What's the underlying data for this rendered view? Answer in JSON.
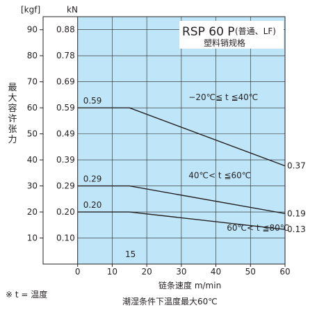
{
  "chart_data": {
    "type": "line",
    "unit_left": "[kgf]",
    "unit_right": "kN",
    "ylabel": "最大容许张力",
    "xlabel": "链条速度 m/min",
    "footnote_left": "※ t = 温度",
    "footnote_bottom": "潮湿条件下温度最大60℃",
    "legend_title": "RSP 60 P",
    "legend_title_suffix": "(普通、LF)",
    "legend_subtitle": "塑料销规格",
    "x_ticks": [
      "0",
      "10",
      "20",
      "30",
      "40",
      "50",
      "60"
    ],
    "y_ticks_kgf": [
      "10",
      "20",
      "30",
      "40",
      "50",
      "60",
      "70",
      "80",
      "90"
    ],
    "y_ticks_kn": [
      "0.10",
      "0.20",
      "0.29",
      "0.39",
      "0.49",
      "0.59",
      "0.69",
      "0.78",
      "0.88"
    ],
    "xlim": [
      -10,
      60
    ],
    "ylim": [
      0,
      95
    ],
    "grid": true,
    "plot_area_color": "#bfe6f8",
    "line_color": "#231f20",
    "speed_marker": "15",
    "series": [
      {
        "name": "−20℃≦ t ≦40℃",
        "x": [
          0,
          15,
          60
        ],
        "y": [
          60,
          60,
          37.7
        ],
        "start_label": "0.59",
        "end_label": "0.37"
      },
      {
        "name": "40℃< t ≦60℃",
        "x": [
          0,
          15,
          60
        ],
        "y": [
          30,
          30,
          19.4
        ],
        "start_label": "0.29",
        "end_label": "0.19"
      },
      {
        "name": "60℃< t ≦80℃",
        "x": [
          0,
          15,
          60
        ],
        "y": [
          20,
          20,
          13.3
        ],
        "start_label": "0.20",
        "end_label": "0.13"
      }
    ]
  }
}
